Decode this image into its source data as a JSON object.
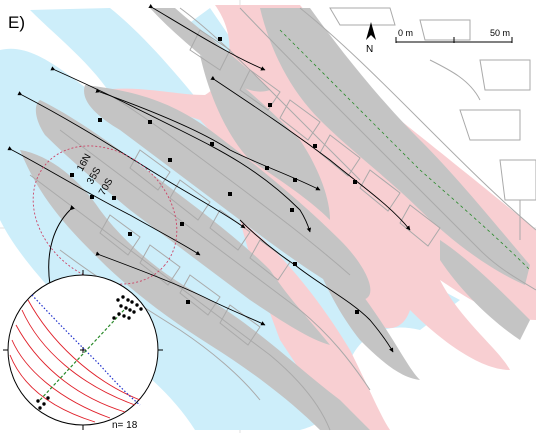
{
  "panel": {
    "label": "E)"
  },
  "north_arrow": {
    "label": "N"
  },
  "scale_bar": {
    "start_label": "0 m",
    "end_label": "50 m"
  },
  "fault_labels": {
    "label_1": "16N",
    "label_2": "35S",
    "label_3": "70S"
  },
  "stereonet": {
    "count_label": "n= 18"
  },
  "colors": {
    "blue_zone": "#cdeefa",
    "pink_zone": "#f8cfd2",
    "grey_zone": "#c4c4c4",
    "grid": "#d8d8d8",
    "roads": "#aaaaaa",
    "fault_traces": "#000000",
    "great_circles": "#e0202a",
    "dotted_circle": "#2233cc",
    "dashed_line": "#2a8a2a"
  }
}
